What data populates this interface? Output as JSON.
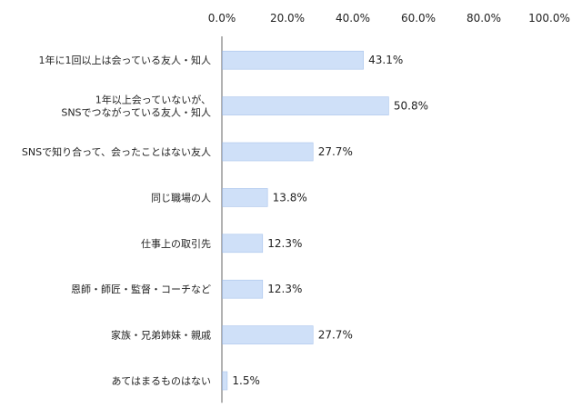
{
  "chart_data": {
    "type": "bar",
    "orientation": "horizontal",
    "xlim": [
      0,
      100
    ],
    "ticks": [
      "0.0%",
      "20.0%",
      "40.0%",
      "60.0%",
      "80.0%",
      "100.0%"
    ],
    "tick_values": [
      0,
      20,
      40,
      60,
      80,
      100
    ],
    "categories": [
      [
        "1年に1回以上は会っている友人・知人"
      ],
      [
        "1年以上会っていないが、",
        "SNSでつながっている友人・知人"
      ],
      [
        "SNSで知り合って、会ったことはない友人"
      ],
      [
        "同じ職場の人"
      ],
      [
        "仕事上の取引先"
      ],
      [
        "恩師・師匠・監督・コーチなど"
      ],
      [
        "家族・兄弟姉妹・親戚"
      ],
      [
        "あてはまるものはない"
      ]
    ],
    "values": [
      43.1,
      50.8,
      27.7,
      13.8,
      12.3,
      12.3,
      27.7,
      1.5
    ],
    "value_labels": [
      "43.1%",
      "50.8%",
      "27.7%",
      "13.8%",
      "12.3%",
      "12.3%",
      "27.7%",
      "1.5%"
    ],
    "bar_color": "#cfe0f8",
    "grid": false,
    "legend": "none"
  }
}
